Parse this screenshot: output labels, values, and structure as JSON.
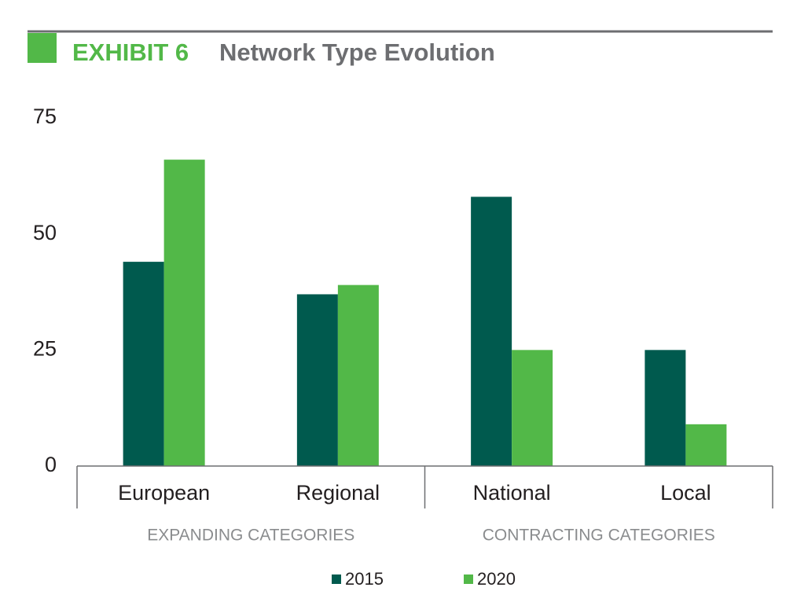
{
  "chart_data": {
    "type": "bar",
    "exhibit": "EXHIBIT 6",
    "title": "Network Type Evolution",
    "categories": [
      "European",
      "Regional",
      "National",
      "Local"
    ],
    "groups": [
      "EXPANDING CATEGORIES",
      "CONTRACTING CATEGORIES"
    ],
    "series": [
      {
        "name": "2015",
        "color": "#005a4e",
        "values": [
          44,
          37,
          58,
          25
        ]
      },
      {
        "name": "2020",
        "color": "#52b848",
        "values": [
          66,
          39,
          25,
          9
        ]
      }
    ],
    "ylim": [
      0,
      75
    ],
    "yticks": [
      0,
      25,
      50,
      75
    ],
    "grid": false
  }
}
